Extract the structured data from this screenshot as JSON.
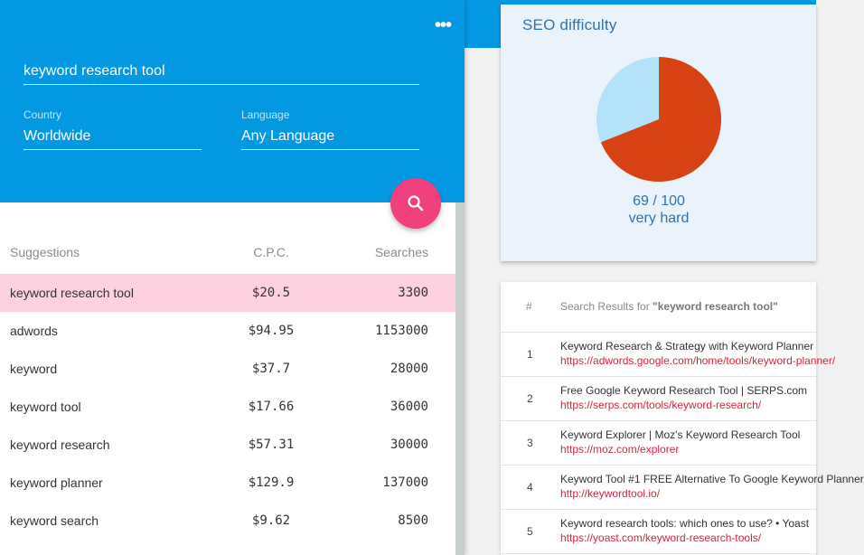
{
  "header": {
    "keyword_value": "keyword research tool",
    "country_label": "Country",
    "country_value": "Worldwide",
    "language_label": "Language",
    "language_value": "Any Language",
    "more_icon": "more-horizontal-icon",
    "search_icon": "search-icon"
  },
  "colors": {
    "primary": "#0398e2",
    "accent": "#f0417e",
    "selected_row": "#ffd0e0",
    "pie_hard": "#d84315",
    "pie_rest": "#b3e3fa",
    "link": "#d8243d"
  },
  "suggestions": {
    "columns": {
      "keyword": "Suggestions",
      "cpc": "C.P.C.",
      "searches": "Searches"
    },
    "rows": [
      {
        "keyword": "keyword research tool",
        "cpc": "$20.5",
        "searches": "3300"
      },
      {
        "keyword": "adwords",
        "cpc": "$94.95",
        "searches": "1153000"
      },
      {
        "keyword": "keyword",
        "cpc": "$37.7",
        "searches": "28000"
      },
      {
        "keyword": "keyword tool",
        "cpc": "$17.66",
        "searches": "36000"
      },
      {
        "keyword": "keyword research",
        "cpc": "$57.31",
        "searches": "30000"
      },
      {
        "keyword": "keyword planner",
        "cpc": "$129.9",
        "searches": "137000"
      },
      {
        "keyword": "keyword search",
        "cpc": "$9.62",
        "searches": "8500"
      }
    ]
  },
  "seo": {
    "title": "SEO difficulty",
    "score": 69,
    "max": 100,
    "score_text": "69 / 100",
    "rating": "very hard"
  },
  "results": {
    "hash_header": "#",
    "title_prefix": "Search Results for ",
    "title_query": "\"keyword research tool\"",
    "items": [
      {
        "num": "1",
        "title": "Keyword Research & Strategy with Keyword Planner",
        "url": "https://adwords.google.com/home/tools/keyword-planner/"
      },
      {
        "num": "2",
        "title": "Free Google Keyword Research Tool | SERPS.com",
        "url": "https://serps.com/tools/keyword-research/"
      },
      {
        "num": "3",
        "title": "Keyword Explorer | Moz's Keyword Research Tool",
        "url": "https://moz.com/explorer"
      },
      {
        "num": "4",
        "title": "Keyword Tool #1 FREE Alternative To Google Keyword Planner",
        "url": "http://keywordtool.io/"
      },
      {
        "num": "5",
        "title": "Keyword research tools: which ones to use? • Yoast",
        "url": "https://yoast.com/keyword-research-tools/"
      }
    ]
  }
}
